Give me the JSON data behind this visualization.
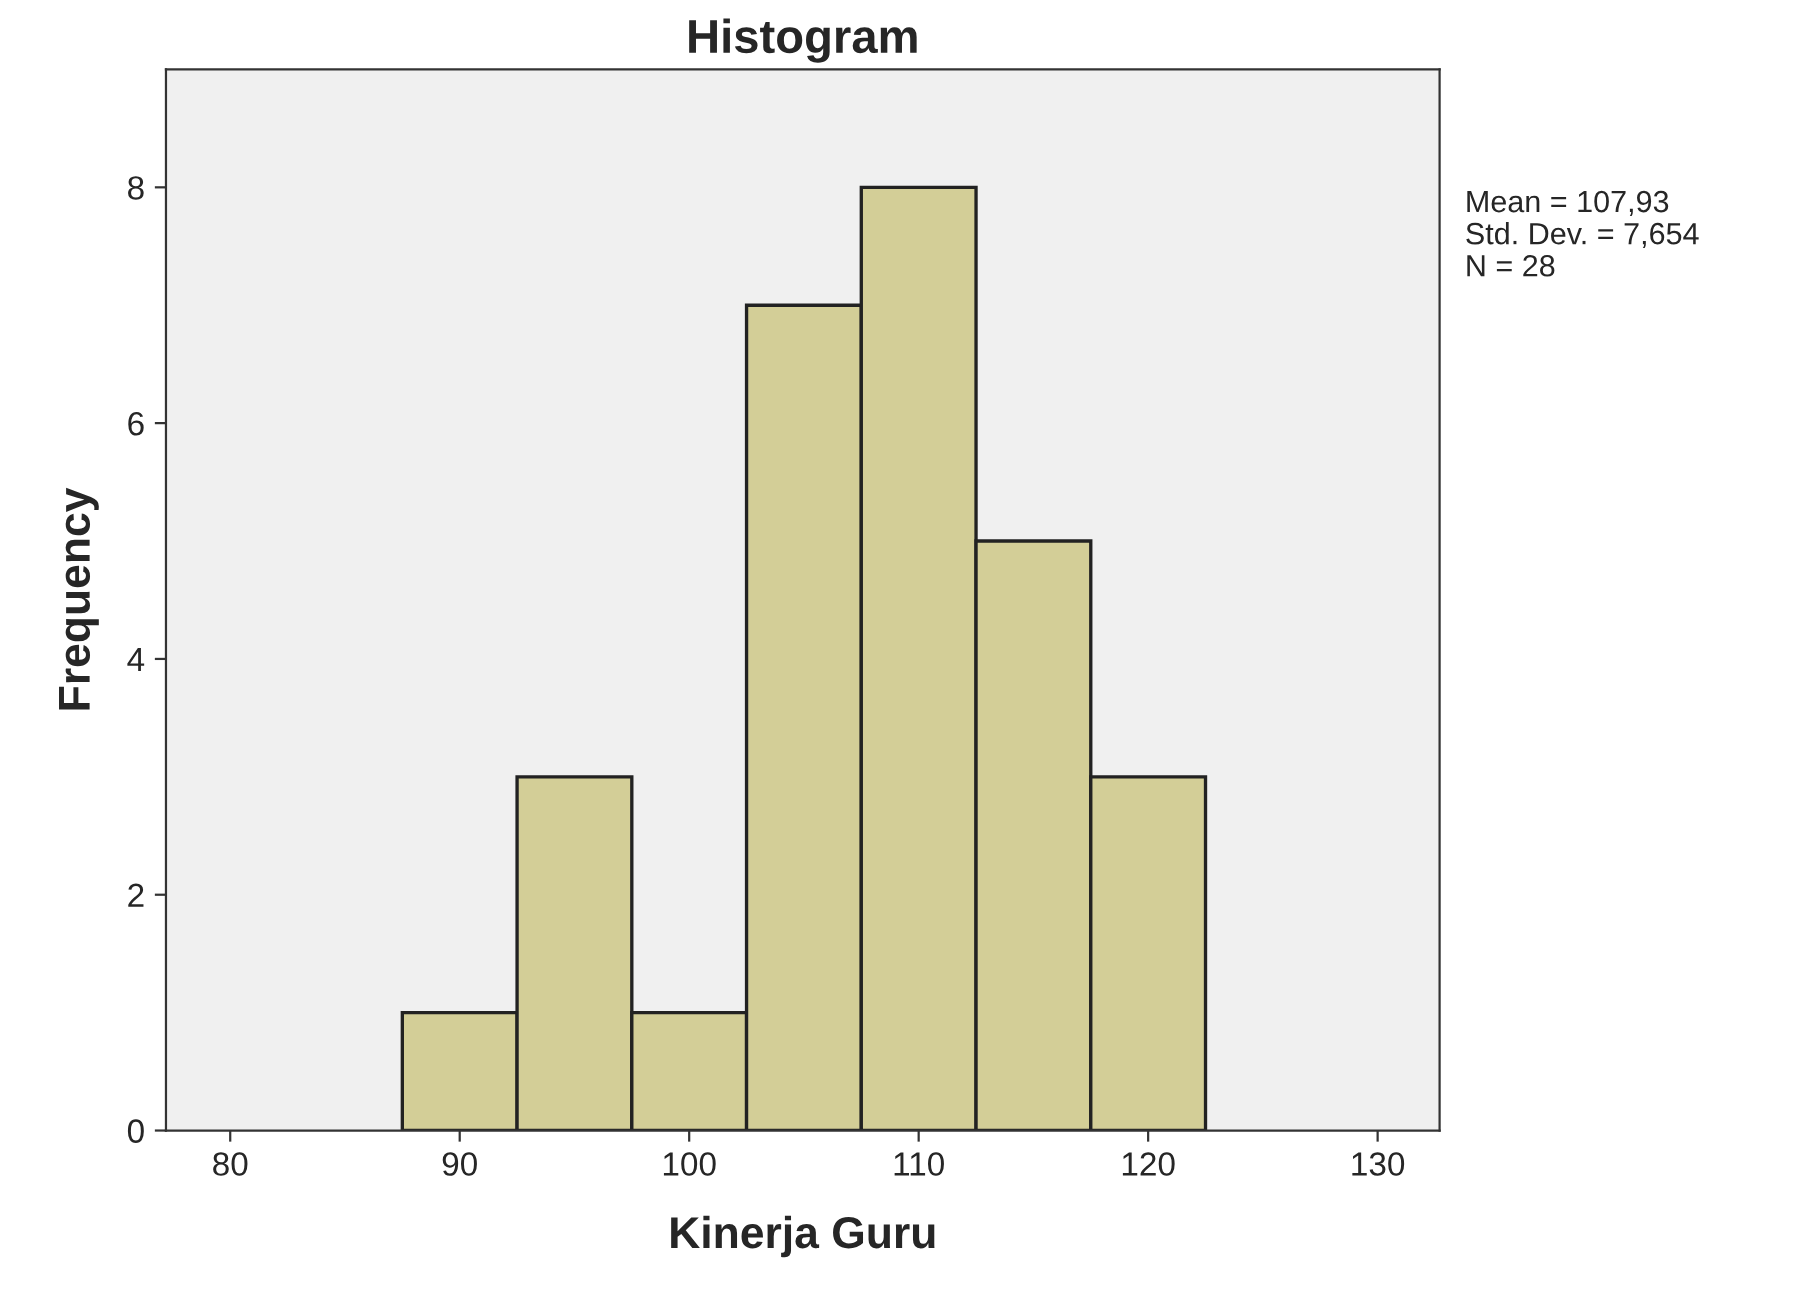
{
  "chart_data": {
    "type": "histogram",
    "title": "Histogram",
    "xlabel": "Kinerja Guru",
    "ylabel": "Frequency",
    "bins": [
      87.5,
      92.5,
      97.5,
      102.5,
      107.5,
      112.5,
      117.5,
      122.5
    ],
    "values": [
      1,
      3,
      1,
      7,
      8,
      5,
      3
    ],
    "color": "#d3ce97",
    "xlim": [
      77.2,
      132.7
    ],
    "xticks": [
      80,
      90,
      100,
      110,
      120,
      130
    ],
    "ylim": [
      0,
      9.0
    ],
    "yticks": [
      0,
      2,
      4,
      6,
      8
    ],
    "grid": false,
    "legend": false,
    "annotations": [
      "Mean = 107,93",
      "Std. Dev. = 7,654",
      "N = 28"
    ]
  }
}
